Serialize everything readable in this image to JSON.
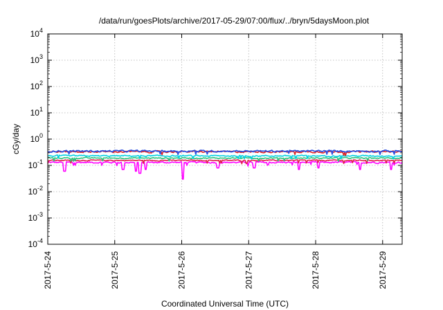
{
  "chart_data": {
    "type": "line",
    "title": "/data/run/goesPlots/archive/2017-05-29/07:00/flux/../bryn/5daysMoon.plot",
    "xlabel": "Coordinated Universal Time (UTC)",
    "ylabel": "cGy/day",
    "yscale": "log",
    "ylim": [
      0.0001,
      10000
    ],
    "xlim": [
      "2017-05-24",
      "2017-05-29 07:00"
    ],
    "grid": true,
    "x_ticks": [
      "2017-5-24",
      "2017-5-25",
      "2017-5-26",
      "2017-5-27",
      "2017-5-28",
      "2017-5-29"
    ],
    "y_ticks": [
      {
        "base": "10",
        "exp": "-4"
      },
      {
        "base": "10",
        "exp": "-3"
      },
      {
        "base": "10",
        "exp": "-2"
      },
      {
        "base": "10",
        "exp": "-1"
      },
      {
        "base": "10",
        "exp": "0"
      },
      {
        "base": "10",
        "exp": "1"
      },
      {
        "base": "10",
        "exp": "2"
      },
      {
        "base": "10",
        "exp": "3"
      },
      {
        "base": "10",
        "exp": "4"
      }
    ],
    "series": [
      {
        "color": "#ff00ff",
        "base": 0.13,
        "noise": 0.12,
        "dips": [
          [
            "2017-05-24 06:00",
            0.06
          ],
          [
            "2017-05-25 03:00",
            0.07
          ],
          [
            "2017-05-25 07:30",
            0.06
          ],
          [
            "2017-05-25 09:00",
            0.05
          ],
          [
            "2017-05-25 11:00",
            0.07
          ],
          [
            "2017-05-26 00:30",
            0.03
          ],
          [
            "2017-05-26 13:00",
            0.08
          ],
          [
            "2017-05-27 02:00",
            0.08
          ],
          [
            "2017-05-27 18:00",
            0.07
          ],
          [
            "2017-05-28 01:00",
            0.08
          ],
          [
            "2017-05-28 16:00",
            0.07
          ],
          [
            "2017-05-29 03:00",
            0.07
          ]
        ]
      },
      {
        "color": "#e0204a",
        "base": 0.155,
        "noise": 0.08,
        "dips": []
      },
      {
        "color": "#2ec27e",
        "base": 0.19,
        "noise": 0.09,
        "dips": []
      },
      {
        "color": "#00d0e0",
        "base": 0.23,
        "noise": 0.1,
        "dips": []
      },
      {
        "color": "#e02020",
        "base": 0.33,
        "noise": 0.13,
        "dips": []
      },
      {
        "color": "#3050e0",
        "base": 0.35,
        "noise": 0.13,
        "dips": []
      }
    ]
  }
}
